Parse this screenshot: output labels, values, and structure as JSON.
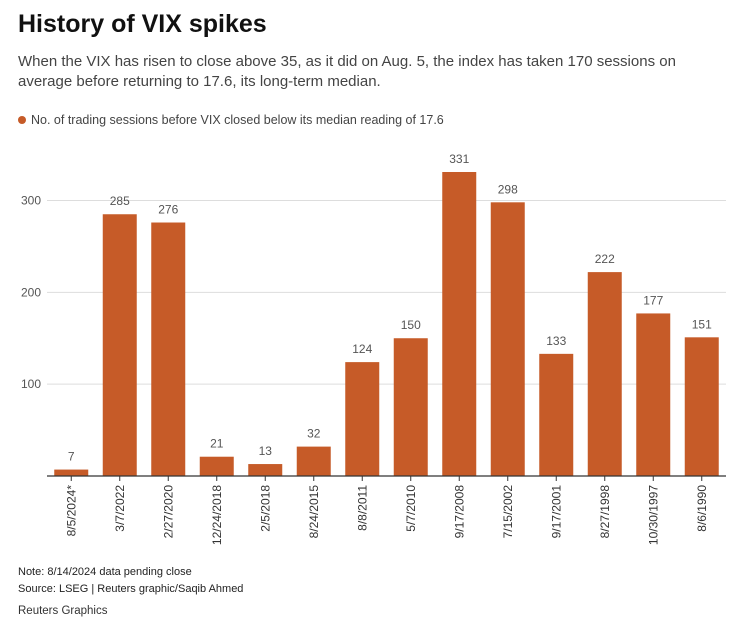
{
  "title": "History of VIX spikes",
  "subtitle": "When the VIX has risen to close above 35, as it did on Aug. 5, the index has taken 170 sessions on average before returning to 17.6, its long-term median.",
  "footer": {
    "note": "Note: 8/14/2024 data pending close",
    "source": "Source: LSEG | Reuters graphic/Saqib Ahmed",
    "credit": "Reuters Graphics"
  },
  "colors": {
    "bar": "#c65b28",
    "grid": "#dddddd",
    "axis": "#333333",
    "label": "#555555"
  },
  "chart_data": {
    "type": "bar",
    "categories": [
      "8/5/2024*",
      "3/7/2022",
      "2/27/2020",
      "12/24/2018",
      "2/5/2018",
      "8/24/2015",
      "8/8/2011",
      "5/7/2010",
      "9/17/2008",
      "7/15/2002",
      "9/17/2001",
      "8/27/1998",
      "10/30/1997",
      "8/6/1990"
    ],
    "series": [
      {
        "name": "No. of trading sessions before VIX closed below its median reading of 17.6",
        "values": [
          7,
          285,
          276,
          21,
          13,
          32,
          124,
          150,
          331,
          298,
          133,
          222,
          177,
          151
        ]
      }
    ],
    "yticks": [
      100,
      200,
      300
    ],
    "ylim": [
      0,
      331
    ],
    "grid": true,
    "legend_position": "top-left",
    "xlabel": "",
    "ylabel": ""
  }
}
